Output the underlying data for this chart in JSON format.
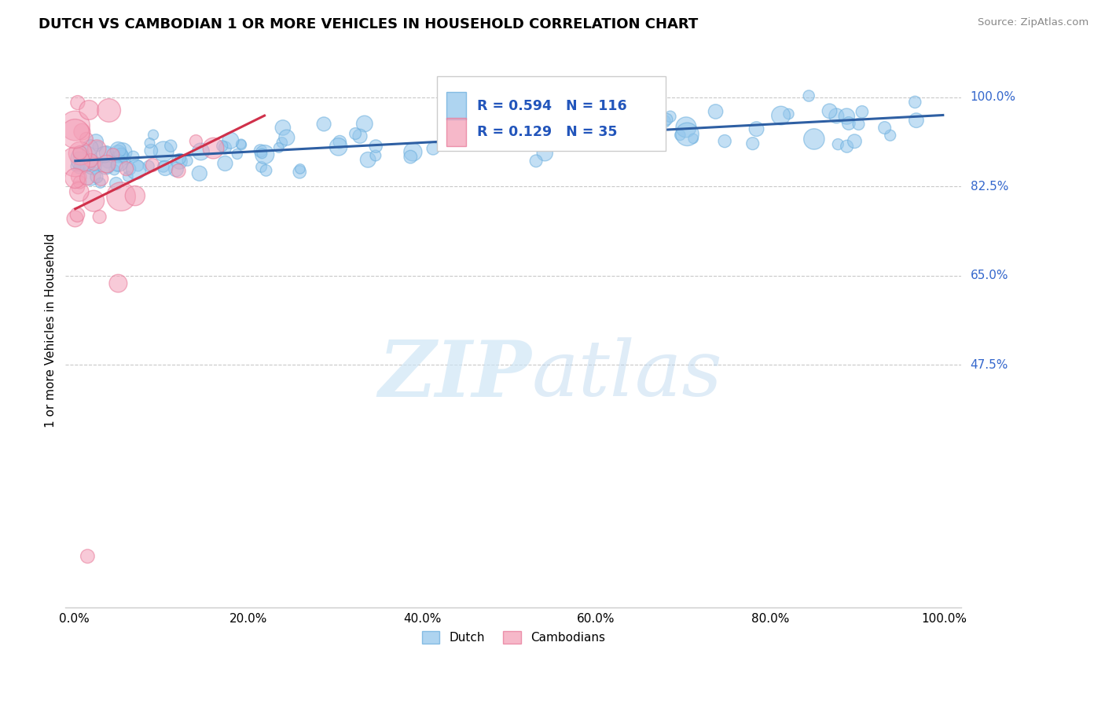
{
  "title": "DUTCH VS CAMBODIAN 1 OR MORE VEHICLES IN HOUSEHOLD CORRELATION CHART",
  "source": "Source: ZipAtlas.com",
  "ylabel": "1 or more Vehicles in Household",
  "xlim": [
    0.0,
    1.0
  ],
  "ylim": [
    0.0,
    1.05
  ],
  "right_ytick_labels": [
    "100.0%",
    "82.5%",
    "65.0%",
    "47.5%"
  ],
  "right_ytick_values": [
    1.0,
    0.825,
    0.65,
    0.475
  ],
  "dutch_color": "#93C6EC",
  "dutch_edge_color": "#6AAEDD",
  "cambodian_color": "#F4A0B8",
  "cambodian_edge_color": "#E87898",
  "trendline_dutch_color": "#2E5FA3",
  "trendline_cambodian_color": "#D0304A",
  "legend_dutch_R": "R = 0.594",
  "legend_dutch_N": "N = 116",
  "legend_cambodian_R": "R = 0.129",
  "legend_cambodian_N": "N = 35",
  "dutch_trend_x0": 0.0,
  "dutch_trend_x1": 1.0,
  "dutch_trend_y0": 0.875,
  "dutch_trend_y1": 0.965,
  "cam_trend_x0": 0.0,
  "cam_trend_x1": 0.22,
  "cam_trend_y0": 0.78,
  "cam_trend_y1": 0.965
}
